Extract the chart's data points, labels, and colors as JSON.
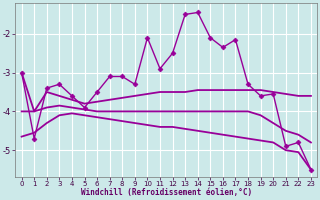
{
  "xlabel": "Windchill (Refroidissement éolien,°C)",
  "bg_color": "#cce9e9",
  "line_color": "#990099",
  "grid_color": "#ffffff",
  "xlim": [
    -0.5,
    23.5
  ],
  "ylim": [
    -5.7,
    -1.2
  ],
  "yticks": [
    -5,
    -4,
    -3,
    -2
  ],
  "xticks": [
    0,
    1,
    2,
    3,
    4,
    5,
    6,
    7,
    8,
    9,
    10,
    11,
    12,
    13,
    14,
    15,
    16,
    17,
    18,
    19,
    20,
    21,
    22,
    23
  ],
  "lines": [
    {
      "x": [
        0,
        1,
        2,
        3,
        4,
        5,
        6,
        7,
        8,
        9,
        10,
        11,
        12,
        13,
        14,
        15,
        16,
        17,
        18,
        19,
        20,
        21,
        22,
        23
      ],
      "y": [
        -3.0,
        -4.7,
        -3.4,
        -3.3,
        -3.6,
        -3.9,
        -3.5,
        -3.1,
        -3.1,
        -3.3,
        -2.1,
        -2.9,
        -2.5,
        -1.5,
        -1.45,
        -2.1,
        -2.35,
        -2.15,
        -3.3,
        -3.6,
        -3.55,
        -4.9,
        -4.8,
        -5.5
      ],
      "marker": "D",
      "markersize": 2.5,
      "linewidth": 1.0
    },
    {
      "x": [
        0,
        1,
        2,
        3,
        4,
        5,
        6,
        7,
        8,
        9,
        10,
        11,
        12,
        13,
        14,
        15,
        16,
        17,
        18,
        19,
        20,
        21,
        22,
        23
      ],
      "y": [
        -3.0,
        -4.0,
        -3.5,
        -3.6,
        -3.7,
        -3.8,
        -3.75,
        -3.7,
        -3.65,
        -3.6,
        -3.55,
        -3.5,
        -3.5,
        -3.5,
        -3.45,
        -3.45,
        -3.45,
        -3.45,
        -3.45,
        -3.45,
        -3.5,
        -3.55,
        -3.6,
        -3.6
      ],
      "marker": null,
      "markersize": 0,
      "linewidth": 1.3
    },
    {
      "x": [
        0,
        1,
        2,
        3,
        4,
        5,
        6,
        7,
        8,
        9,
        10,
        11,
        12,
        13,
        14,
        15,
        16,
        17,
        18,
        19,
        20,
        21,
        22,
        23
      ],
      "y": [
        -4.0,
        -4.0,
        -3.9,
        -3.85,
        -3.9,
        -3.95,
        -4.0,
        -4.0,
        -4.0,
        -4.0,
        -4.0,
        -4.0,
        -4.0,
        -4.0,
        -4.0,
        -4.0,
        -4.0,
        -4.0,
        -4.0,
        -4.1,
        -4.3,
        -4.5,
        -4.6,
        -4.8
      ],
      "marker": null,
      "markersize": 0,
      "linewidth": 1.3
    },
    {
      "x": [
        0,
        1,
        2,
        3,
        4,
        5,
        6,
        7,
        8,
        9,
        10,
        11,
        12,
        13,
        14,
        15,
        16,
        17,
        18,
        19,
        20,
        21,
        22,
        23
      ],
      "y": [
        -4.65,
        -4.55,
        -4.3,
        -4.1,
        -4.05,
        -4.1,
        -4.15,
        -4.2,
        -4.25,
        -4.3,
        -4.35,
        -4.4,
        -4.4,
        -4.45,
        -4.5,
        -4.55,
        -4.6,
        -4.65,
        -4.7,
        -4.75,
        -4.8,
        -5.0,
        -5.05,
        -5.5
      ],
      "marker": null,
      "markersize": 0,
      "linewidth": 1.3
    }
  ]
}
